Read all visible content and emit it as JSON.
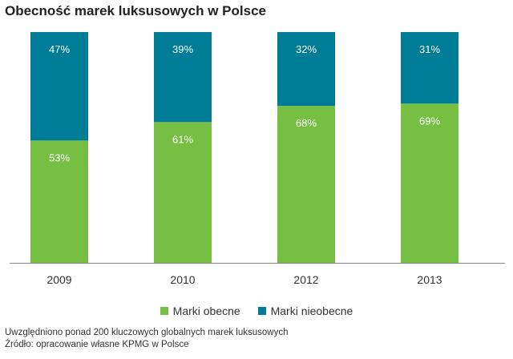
{
  "colors": {
    "present": "#76bf43",
    "absent": "#007d96",
    "axis": "#888888"
  },
  "chart_data": {
    "type": "bar",
    "stacked": true,
    "title": "Obecność marek luksusowych w Polsce",
    "categories": [
      "2009",
      "2010",
      "2012",
      "2013"
    ],
    "ylim": [
      0,
      100
    ],
    "series": [
      {
        "name": "Marki obecne",
        "values": [
          53,
          61,
          68,
          69
        ],
        "labels": [
          "53%",
          "61%",
          "68%",
          "69%"
        ]
      },
      {
        "name": "Marki nieobecne",
        "values": [
          47,
          39,
          32,
          31
        ],
        "labels": [
          "47%",
          "39%",
          "32%",
          "31%"
        ]
      }
    ],
    "legend_position": "bottom-center",
    "notes": [
      "Uwzględniono ponad 200 kluczowych globalnych marek luksusowych",
      "Źródło: opracowanie własne KPMG w Polsce"
    ]
  }
}
